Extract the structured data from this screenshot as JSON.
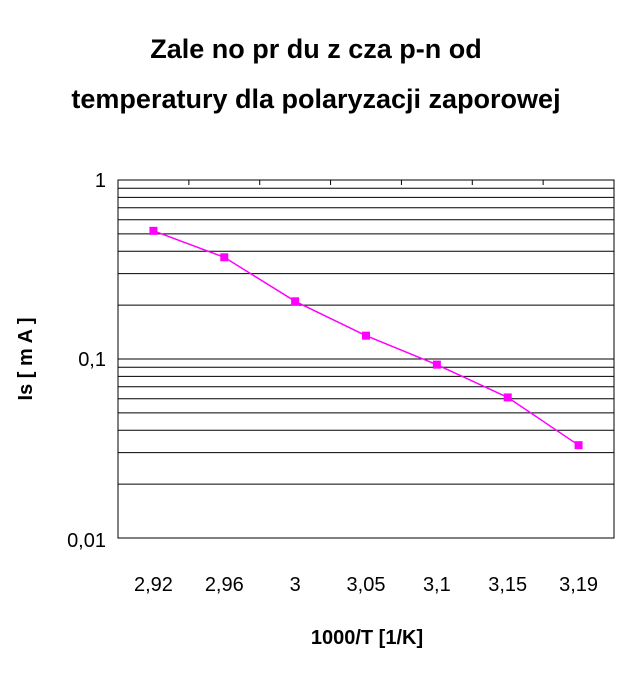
{
  "chart_data": {
    "type": "line",
    "title_lines": [
      "Zale  no     pr  du z   cza p-n od",
      "temperatury dla polaryzacji zaporowej"
    ],
    "xlabel": "1000/T [1/K]",
    "ylabel": "Is  [ m A ]",
    "y_scale": "log",
    "ylim": [
      0.01,
      1
    ],
    "y_tick_labels": [
      "1",
      "0,1",
      "0,01"
    ],
    "categories": [
      "2,92",
      "2,96",
      "3",
      "3,05",
      "3,1",
      "3,15",
      "3,19"
    ],
    "series": [
      {
        "values": [
          0.52,
          0.37,
          0.21,
          0.135,
          0.093,
          0.061,
          0.033
        ]
      }
    ],
    "grid": "horizontal major and minor",
    "colors": {
      "series": "#ff00ff",
      "grid": "#000000"
    }
  }
}
